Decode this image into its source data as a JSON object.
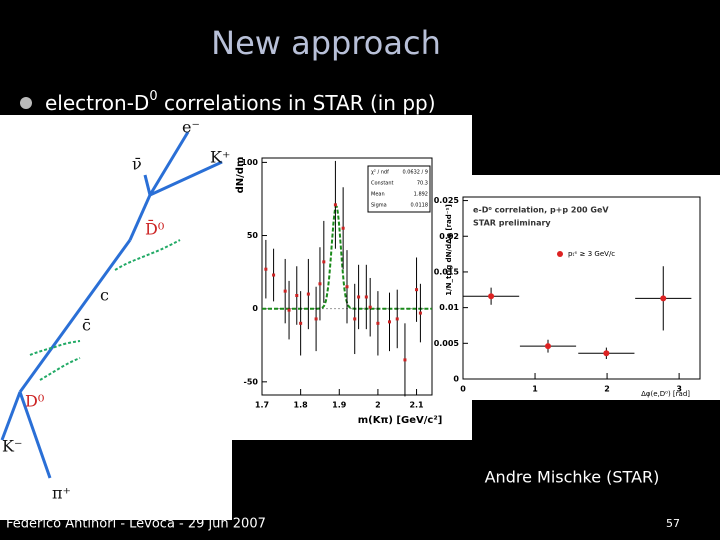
{
  "slide": {
    "title": "New approach",
    "bullet": [
      "electron-D",
      "0",
      " correlations in STAR (in pp)"
    ],
    "caption": "Andre Mischke (STAR)",
    "footer": "Federico Antinori - Levoča - 29 jún 2007",
    "page_number": 57
  },
  "diagram": {
    "labels": [
      "e⁻",
      "ν̄",
      "K⁺",
      "D̄⁰",
      "c",
      "c̄",
      "D⁰",
      "K⁻",
      "π⁺"
    ]
  },
  "figures": [
    {
      "type": "scatter",
      "y_label": "dN/dm",
      "x_label": "m(Kπ) [GeV/c²]",
      "xlim": [
        1.7,
        2.14
      ],
      "ylim": [
        -59,
        103
      ],
      "xticks": [
        1.7,
        1.8,
        1.9,
        2,
        2.1
      ],
      "yticks": [
        -50,
        0,
        50,
        100
      ],
      "chi2_label": "χ² / ndf",
      "chi2": "0.0632 / 9",
      "fit_labels": {
        "constant": "Constant",
        "mean": "Mean",
        "sigma": "Sigma"
      },
      "fit": {
        "constant": 70.3,
        "mean": 1.892,
        "sigma": 0.0118
      },
      "x": [
        1.71,
        1.73,
        1.76,
        1.77,
        1.79,
        1.8,
        1.82,
        1.84,
        1.85,
        1.86,
        1.89,
        1.91,
        1.92,
        1.94,
        1.95,
        1.97,
        1.98,
        2.0,
        2.03,
        2.05,
        2.07,
        2.1,
        2.11
      ],
      "values": [
        27,
        23,
        12,
        -1,
        9,
        -10,
        10,
        -7,
        17,
        32,
        71,
        55,
        15,
        -7,
        8,
        8,
        1,
        -10,
        -9,
        -7,
        -35,
        13,
        -3
      ],
      "errors": [
        20,
        18,
        22,
        20,
        20,
        22,
        24,
        22,
        25,
        28,
        30,
        28,
        25,
        24,
        22,
        22,
        20,
        22,
        20,
        20,
        25,
        22,
        20
      ],
      "color": "#cc2222"
    },
    {
      "type": "scatter",
      "y_label": "1/N_trig dN/dΔφ [rad⁻¹]",
      "x_label": "Δφ(e,D⁰) [rad]",
      "legend_title": "e-D⁰ correlation, p+p 200 GeV",
      "legend_subtitle": "STAR preliminary",
      "series_name": "pₜᵉ ≥ 3 GeV/c",
      "xlim": [
        0,
        3.29
      ],
      "ylim": [
        0,
        0.0255
      ],
      "xticks": [
        0,
        1,
        2,
        3
      ],
      "yticks": [
        0,
        0.005,
        0.01,
        0.015,
        0.02,
        0.025
      ],
      "x": [
        0.39,
        1.18,
        1.99,
        2.78
      ],
      "x_errors": [
        0.39,
        0.39,
        0.39,
        0.39
      ],
      "values": [
        0.0116,
        0.0046,
        0.0036,
        0.0113
      ],
      "errors": [
        0.0012,
        0.0009,
        0.0008,
        0.0045
      ],
      "color": "#dd2222"
    }
  ]
}
